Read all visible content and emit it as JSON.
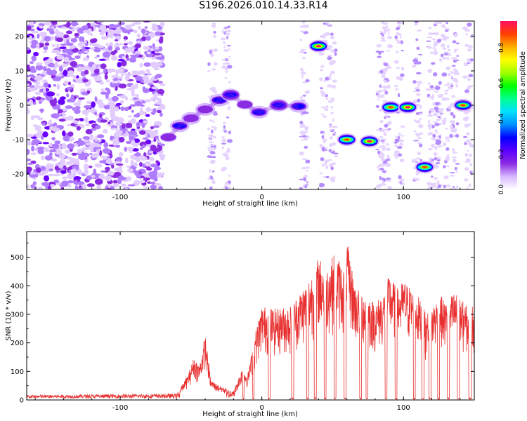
{
  "title": "S196.2026.010.14.33.R14",
  "chart_data": [
    {
      "type": "heatmap",
      "xlabel": "Height of straight line (km)",
      "ylabel": "Frequency (Hz)",
      "xlim": [
        -166,
        150
      ],
      "ylim": [
        -24.5,
        24.5
      ],
      "x_ticks": [
        -100,
        0,
        100
      ],
      "y_ticks": [
        -20,
        -10,
        0,
        10,
        20
      ],
      "colorbar": {
        "label": "Normalized spectral amplitude",
        "range": [
          0.0,
          0.95
        ],
        "ticks": [
          "0.0",
          "0.2",
          "0.4",
          "0.6",
          "0.8"
        ],
        "tick_values": [
          0.0,
          0.2,
          0.4,
          0.6,
          0.8
        ],
        "colors": [
          "#ffffff",
          "#d7b8ff",
          "#8b2be2",
          "#5b00ff",
          "#0000ff",
          "#0090ff",
          "#00e0ff",
          "#00ff90",
          "#00ff00",
          "#a0ff00",
          "#ffff00",
          "#ffb000",
          "#ff4000",
          "#ff1060"
        ]
      },
      "noise_region_x": [
        -166,
        -70
      ],
      "ridge": [
        {
          "x": -66,
          "y": -9.3,
          "peak": 0.35
        },
        {
          "x": -58,
          "y": -6.0,
          "peak": 0.45
        },
        {
          "x": -50,
          "y": -3.8,
          "peak": 0.4
        },
        {
          "x": -40,
          "y": -1.2,
          "peak": 0.4
        },
        {
          "x": -30,
          "y": 1.5,
          "peak": 0.45
        },
        {
          "x": -22,
          "y": 3.0,
          "peak": 0.55
        },
        {
          "x": -12,
          "y": 0.2,
          "peak": 0.35
        },
        {
          "x": -2,
          "y": -2.0,
          "peak": 0.5
        },
        {
          "x": 12,
          "y": 0.0,
          "peak": 0.55
        },
        {
          "x": 26,
          "y": -0.3,
          "peak": 0.45
        },
        {
          "x": 40,
          "y": 17.2,
          "peak": 0.95
        },
        {
          "x": 60,
          "y": -10.0,
          "peak": 0.9
        },
        {
          "x": 76,
          "y": -10.5,
          "peak": 0.95
        },
        {
          "x": 91,
          "y": -0.6,
          "peak": 0.9
        },
        {
          "x": 103,
          "y": -0.6,
          "peak": 0.95
        },
        {
          "x": 115,
          "y": -18.0,
          "peak": 0.9
        },
        {
          "x": 142,
          "y": 0.0,
          "peak": 0.85
        }
      ]
    },
    {
      "type": "line",
      "xlabel": "Height of straight line (km)",
      "ylabel": "SNR (10 * v/v)",
      "xlim": [
        -166,
        150
      ],
      "ylim": [
        0,
        590
      ],
      "x_ticks": [
        -100,
        0,
        100
      ],
      "y_ticks": [
        0,
        100,
        200,
        300,
        400,
        500
      ],
      "series": [
        {
          "name": "SNR",
          "color": "#e83030",
          "envelope_x": [
            -166,
            -60,
            -52,
            -48,
            -44,
            -40,
            -36,
            -30,
            -20,
            -14,
            -10,
            -4,
            0,
            10,
            20,
            30,
            36,
            40,
            46,
            52,
            58,
            60,
            66,
            72,
            80,
            86,
            90,
            96,
            100,
            104,
            110,
            116,
            120,
            126,
            130,
            136,
            140,
            146,
            150
          ],
          "envelope_y": [
            15,
            20,
            90,
            150,
            120,
            230,
            70,
            50,
            30,
            110,
            90,
            250,
            330,
            320,
            330,
            400,
            450,
            500,
            470,
            520,
            460,
            560,
            400,
            380,
            340,
            380,
            440,
            390,
            420,
            400,
            370,
            300,
            330,
            370,
            340,
            380,
            360,
            320,
            340
          ],
          "gaps": [
            [
              -13.5,
              -12.5
            ],
            [
              -6.5,
              -5.5
            ],
            [
              4.5,
              6
            ],
            [
              21,
              22.5
            ],
            [
              31.5,
              33
            ],
            [
              37,
              38.5
            ],
            [
              44,
              45.5
            ],
            [
              51,
              52.5
            ],
            [
              58,
              59.5
            ],
            [
              69,
              70.5
            ],
            [
              73.5,
              75
            ],
            [
              87,
              88.5
            ],
            [
              94,
              95.5
            ],
            [
              107,
              108.5
            ],
            [
              113,
              114.5
            ],
            [
              118,
              119.5
            ],
            [
              124,
              125.5
            ],
            [
              131,
              132.5
            ],
            [
              138,
              139.5
            ],
            [
              146,
              148
            ]
          ]
        }
      ]
    }
  ]
}
